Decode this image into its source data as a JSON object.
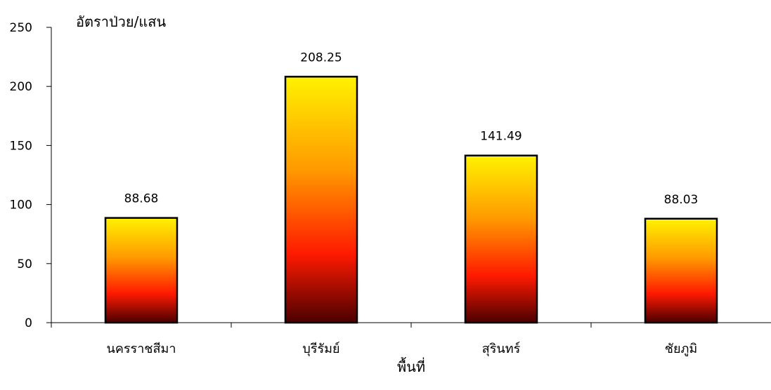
{
  "chart_data": {
    "type": "bar",
    "ylabel": "อัตราป่วย/แสน",
    "xlabel": "พื้นที่",
    "categories": [
      "นครราชสีมา",
      "บุรีรัมย์",
      "สุรินทร์",
      "ชัยภูมิ"
    ],
    "values": [
      88.68,
      208.25,
      141.49,
      88.03
    ],
    "data_labels": [
      "88.68",
      "208.25",
      "141.49",
      "88.03"
    ],
    "ylim": [
      0,
      250
    ],
    "yticks": [
      0,
      50,
      100,
      150,
      200,
      250
    ],
    "grid": false,
    "legend": "none",
    "bar_gradient": [
      "#FFF200",
      "#FF9900",
      "#FF1A00",
      "#4A0000"
    ]
  }
}
